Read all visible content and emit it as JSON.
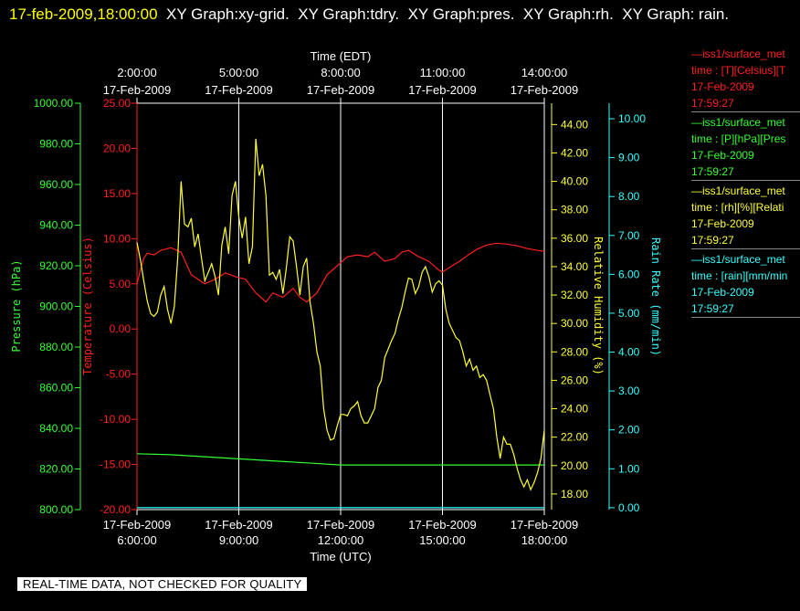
{
  "header": {
    "timestamp": "17-feb-2009,18:00:00",
    "rest": "  XY Graph:xy-grid.  XY Graph:tdry.  XY Graph:pres.  XY Graph:rh.  XY Graph: rain."
  },
  "legend": [
    {
      "line1": "—iss1/surface_met",
      "line2": "time : [T][Celsius][T",
      "line3": "17-Feb-2009",
      "line4": "17:59:27",
      "color": "#ff2020"
    },
    {
      "line1": "—iss1/surface_met",
      "line2": "time : [P][hPa][Pres",
      "line3": "17-Feb-2009",
      "line4": "17:59:27",
      "color": "#33ff33"
    },
    {
      "line1": "—iss1/surface_met",
      "line2": "time : [rh][%][Relati",
      "line3": "17-Feb-2009",
      "line4": "17:59:27",
      "color": "#ffff33"
    },
    {
      "line1": "—iss1/surface_met",
      "line2": "time : [rain][mm/min",
      "line3": "17-Feb-2009",
      "line4": "17:59:27",
      "color": "#33ffff"
    }
  ],
  "footer": "REAL-TIME DATA, NOT CHECKED FOR QUALITY",
  "colors": {
    "temperature": "#ff2020",
    "pressure": "#33ff33",
    "humidity": "#ffff33",
    "rain": "#33ffff",
    "text": "#ffffff",
    "background": "#000000"
  },
  "chart_data": {
    "type": "line",
    "top_axis": {
      "label": "Time (EDT)",
      "ticks": [
        {
          "time": "2:00:00",
          "date": "17-Feb-2009"
        },
        {
          "time": "5:00:00",
          "date": "17-Feb-2009"
        },
        {
          "time": "8:00:00",
          "date": "17-Feb-2009"
        },
        {
          "time": "11:00:00",
          "date": "17-Feb-2009"
        },
        {
          "time": "14:00:00",
          "date": "17-Feb-2009"
        }
      ]
    },
    "bottom_axis": {
      "label": "Time (UTC)",
      "range": [
        "17-Feb-2009 06:00:00",
        "17-Feb-2009 18:00:00"
      ],
      "ticks": [
        {
          "time": "6:00:00",
          "date": "17-Feb-2009"
        },
        {
          "time": "9:00:00",
          "date": "17-Feb-2009"
        },
        {
          "time": "12:00:00",
          "date": "17-Feb-2009"
        },
        {
          "time": "15:00:00",
          "date": "17-Feb-2009"
        },
        {
          "time": "18:00:00",
          "date": "17-Feb-2009"
        }
      ]
    },
    "grid": true,
    "axes": {
      "pressure": {
        "label": "Pressure (hPa)",
        "range": [
          800,
          1000
        ],
        "ticks": [
          "800.00",
          "820.00",
          "840.00",
          "860.00",
          "880.00",
          "900.00",
          "920.00",
          "940.00",
          "960.00",
          "980.00",
          "1000.00"
        ]
      },
      "temperature": {
        "label": "Temperature (Celsius)",
        "range": [
          -20,
          25
        ],
        "ticks": [
          "-20.00",
          "-15.00",
          "-10.00",
          "-5.00",
          "0.00",
          "5.00",
          "10.00",
          "15.00",
          "20.00",
          "25.00"
        ]
      },
      "humidity": {
        "label": "Relative Humidity (%)",
        "range": [
          16.9,
          45.5
        ],
        "ticks": [
          "18.00",
          "20.00",
          "22.00",
          "24.00",
          "26.00",
          "28.00",
          "30.00",
          "32.00",
          "34.00",
          "36.00",
          "38.00",
          "40.00",
          "42.00",
          "44.00"
        ]
      },
      "rain": {
        "label": "Rain Rate (mm/min)",
        "range": [
          -0.05,
          10.4
        ],
        "ticks": [
          "0.00",
          "1.00",
          "2.00",
          "3.00",
          "4.00",
          "5.00",
          "6.00",
          "7.00",
          "8.00",
          "9.00",
          "10.00"
        ]
      }
    },
    "series": [
      {
        "name": "T",
        "axis": "temperature",
        "x": [
          0,
          0.1,
          0.2,
          0.3,
          0.5,
          0.7,
          1,
          1.3,
          1.6,
          2,
          2.3,
          2.6,
          2.9,
          3.2,
          3.5,
          3.8,
          4,
          4.3,
          4.6,
          4.8,
          5,
          5.3,
          5.6,
          5.9,
          6.2,
          6.5,
          6.8,
          7,
          7.3,
          7.6,
          7.8,
          8,
          8.3,
          8.6,
          8.9,
          9,
          9.2,
          9.5,
          9.8,
          10,
          10.3,
          10.6,
          10.9,
          11.2,
          11.5,
          11.8,
          12
        ],
        "y": [
          5,
          6.5,
          7.8,
          8.4,
          8.2,
          8.7,
          9,
          8.5,
          6,
          5,
          5.5,
          6.2,
          5.8,
          5.5,
          4,
          3,
          4,
          3.5,
          4.5,
          3.5,
          3,
          4,
          6,
          7,
          8,
          8.2,
          8,
          8.5,
          7.5,
          7.8,
          8.5,
          8.7,
          8,
          7.5,
          6.5,
          6.3,
          6.8,
          7.5,
          8.3,
          8.8,
          9.3,
          9.5,
          9.4,
          9.2,
          8.9,
          8.7,
          8.6
        ]
      },
      {
        "name": "P",
        "axis": "pressure",
        "x": [
          0,
          1,
          2,
          3,
          4,
          5,
          6,
          7,
          8,
          9,
          10,
          11,
          12
        ],
        "y": [
          827.5,
          827,
          826,
          825,
          824,
          823,
          822,
          822,
          822,
          822,
          822,
          822,
          822
        ]
      },
      {
        "name": "rh",
        "axis": "humidity",
        "x": [
          0,
          0.1,
          0.2,
          0.3,
          0.4,
          0.5,
          0.6,
          0.7,
          0.8,
          0.9,
          1.0,
          1.1,
          1.2,
          1.3,
          1.4,
          1.5,
          1.6,
          1.7,
          1.8,
          1.9,
          2.0,
          2.1,
          2.2,
          2.3,
          2.4,
          2.5,
          2.6,
          2.7,
          2.8,
          2.9,
          3.0,
          3.1,
          3.2,
          3.3,
          3.4,
          3.5,
          3.6,
          3.7,
          3.8,
          3.9,
          4.0,
          4.1,
          4.2,
          4.3,
          4.4,
          4.5,
          4.6,
          4.7,
          4.8,
          4.9,
          5.0,
          5.1,
          5.2,
          5.3,
          5.4,
          5.5,
          5.6,
          5.7,
          5.8,
          5.9,
          6.0,
          6.1,
          6.2,
          6.3,
          6.4,
          6.5,
          6.6,
          6.7,
          6.8,
          6.9,
          7.0,
          7.1,
          7.2,
          7.3,
          7.4,
          7.5,
          7.6,
          7.7,
          7.8,
          7.9,
          8.0,
          8.1,
          8.2,
          8.3,
          8.4,
          8.5,
          8.6,
          8.7,
          8.8,
          8.9,
          9.0,
          9.1,
          9.2,
          9.3,
          9.4,
          9.5,
          9.6,
          9.7,
          9.8,
          9.9,
          10.0,
          10.1,
          10.2,
          10.3,
          10.4,
          10.5,
          10.6,
          10.7,
          10.8,
          10.9,
          11.0,
          11.1,
          11.2,
          11.3,
          11.4,
          11.5,
          11.6,
          11.7,
          11.8,
          11.9,
          12.0
        ],
        "y": [
          35.7,
          34.5,
          33.0,
          31.6,
          30.7,
          30.5,
          30.8,
          32.0,
          32.6,
          31.0,
          30.0,
          31.2,
          34.6,
          40.0,
          37.0,
          36.8,
          37.4,
          35.4,
          36.3,
          34.6,
          33.0,
          33.6,
          34.2,
          33.3,
          32.0,
          35.5,
          36.8,
          34.9,
          39.0,
          40.0,
          37.5,
          36.0,
          37.5,
          34.2,
          35.4,
          43.0,
          40.4,
          41.2,
          39.0,
          33.4,
          33.6,
          33.1,
          33.8,
          32.1,
          33.9,
          36.1,
          35.8,
          34.0,
          32.0,
          34.0,
          34.6,
          31.5,
          30.0,
          28.0,
          27.0,
          24.0,
          22.5,
          21.8,
          21.9,
          22.8,
          23.6,
          23.6,
          23.5,
          24.0,
          24.2,
          24.5,
          23.5,
          23.0,
          23.0,
          23.5,
          24.0,
          25.5,
          26.0,
          27.6,
          28.2,
          28.8,
          29.3,
          30.3,
          31.1,
          32.2,
          33.2,
          33.1,
          32.1,
          32.6,
          33.6,
          34.0,
          33.3,
          32.2,
          32.8,
          33.0,
          32.7,
          31.0,
          30.0,
          29.5,
          29.0,
          28.8,
          28.0,
          27.0,
          27.5,
          26.7,
          27.0,
          26.2,
          26.4,
          26.0,
          25.0,
          24.0,
          22.0,
          20.5,
          22.0,
          21.5,
          21.5,
          20.8,
          19.8,
          19.0,
          18.5,
          19.0,
          18.3,
          18.8,
          19.5,
          20.5,
          22.5
        ]
      },
      {
        "name": "rain",
        "axis": "rain",
        "x": [
          0,
          12
        ],
        "y": [
          0,
          0
        ]
      }
    ]
  }
}
